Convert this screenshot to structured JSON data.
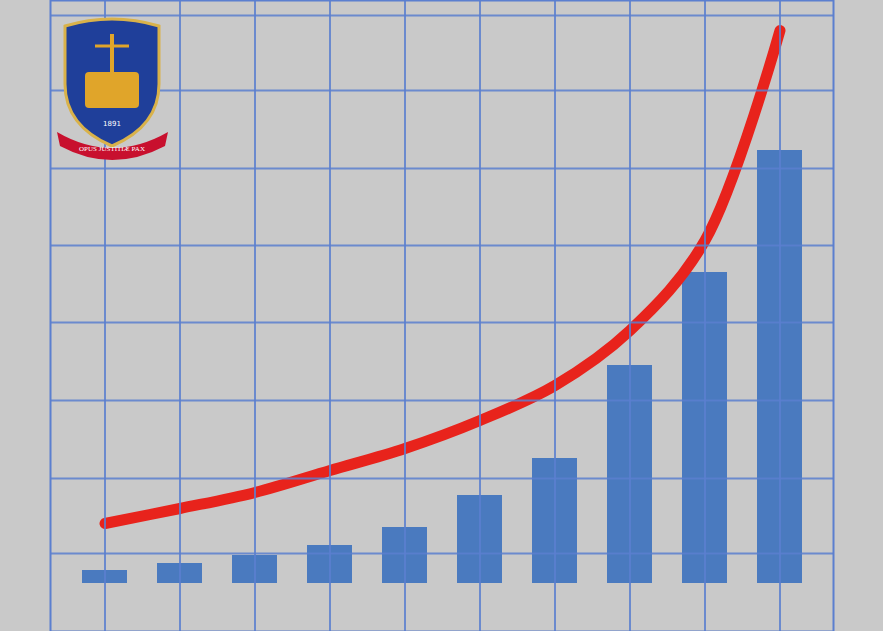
{
  "chart_data": {
    "type": "bar",
    "categories": [
      null,
      null,
      null,
      null,
      null,
      null,
      null,
      null,
      null,
      null
    ],
    "series": [
      {
        "type": "bar",
        "color": "#4a7abf",
        "values": [
          13,
          20,
          28,
          38,
          56,
          88,
          125,
          218,
          311,
          433
        ]
      },
      {
        "type": "line",
        "color": "#e8231c",
        "values": [
          60,
          75,
          91,
          113,
          135,
          163,
          198,
          253,
          343,
          553
        ]
      }
    ],
    "ylim": [
      -48,
      583
    ],
    "yticks": [
      30,
      105,
      183,
      261,
      338,
      415,
      493,
      568
    ],
    "grid": true,
    "tick_labels": false
  },
  "logo": {
    "motto": "OPUS JUSTITIÆ PAX",
    "year": "1891"
  }
}
